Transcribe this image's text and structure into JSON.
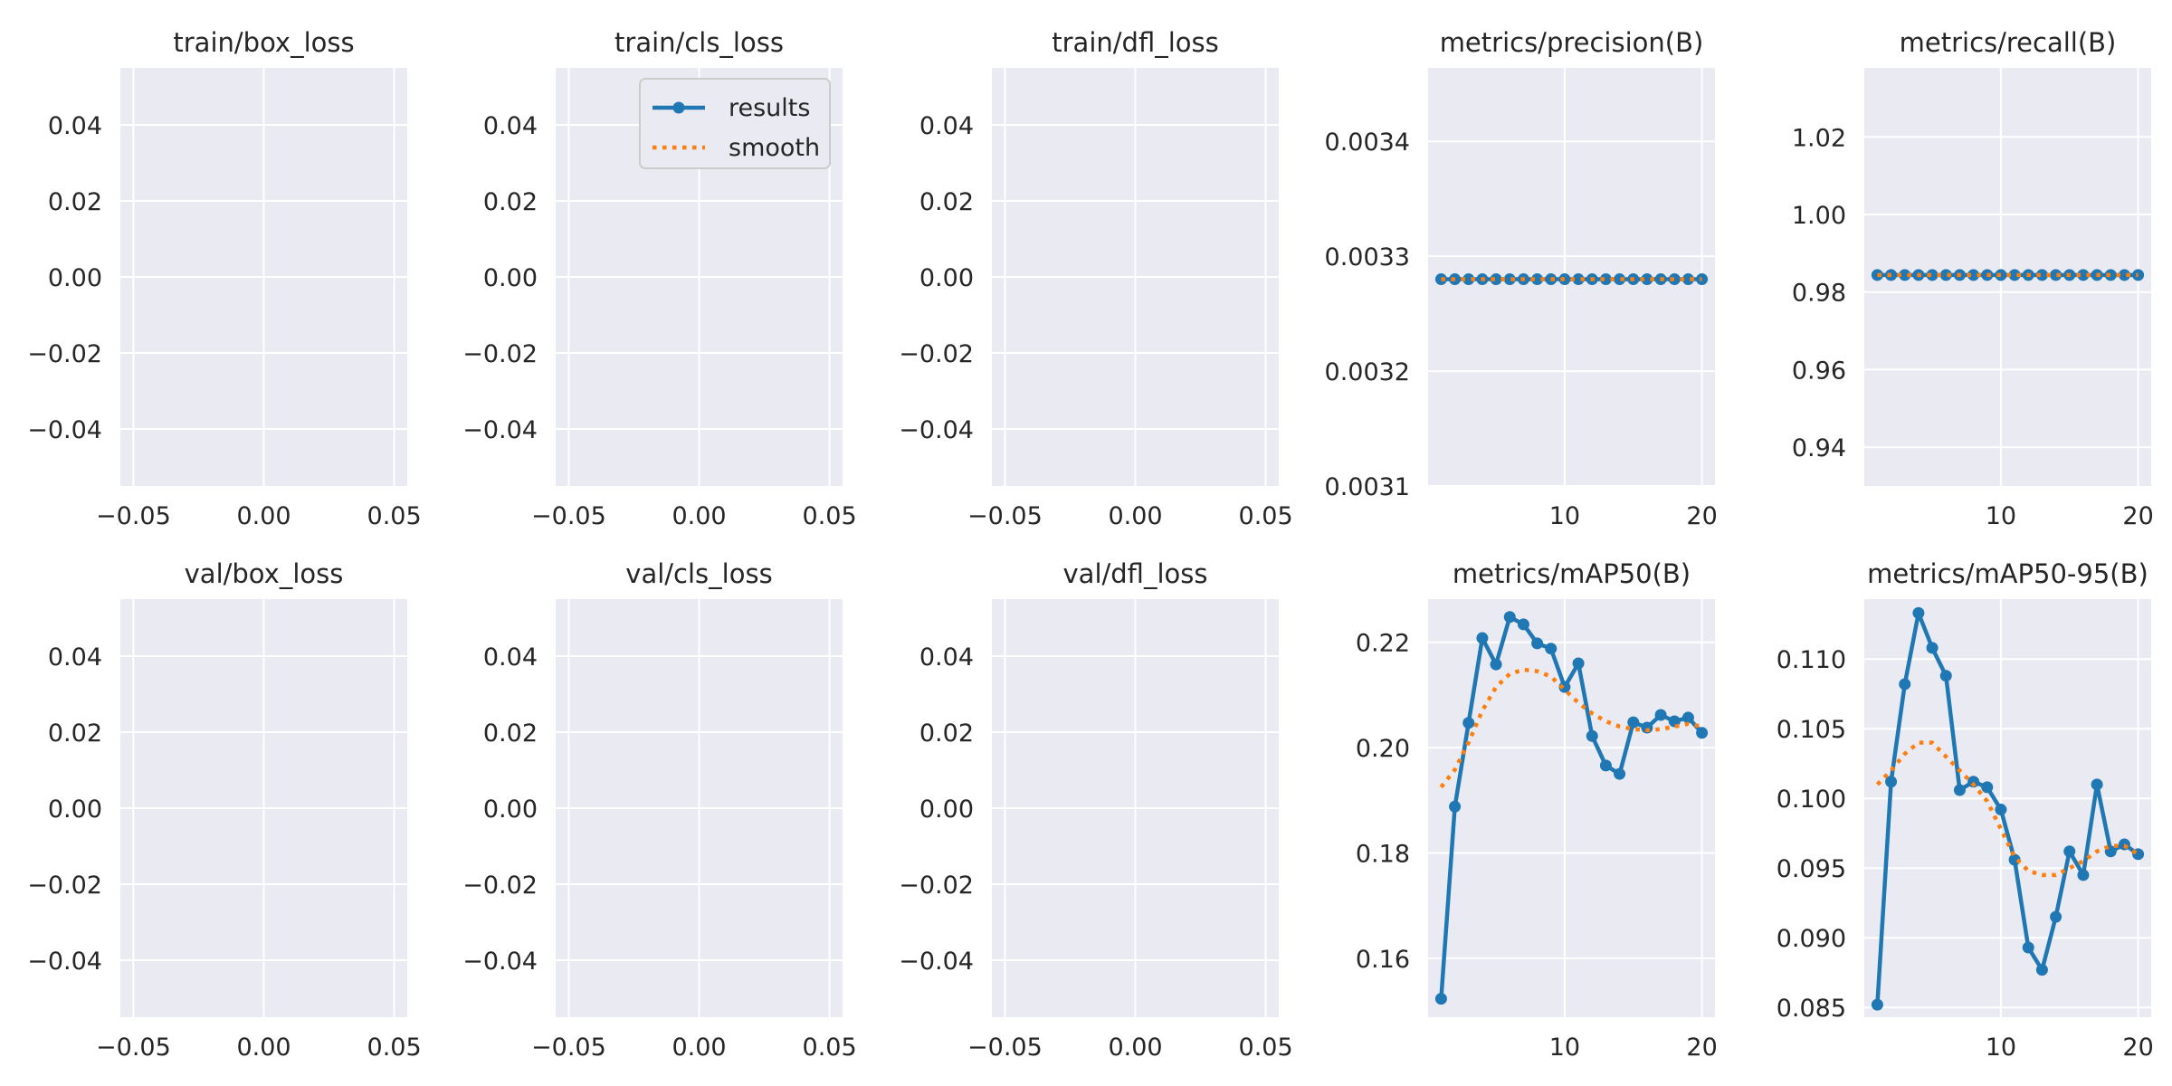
{
  "colors": {
    "panel_bg": "#eaeaf2",
    "grid": "#ffffff",
    "results": "#1f77b4",
    "smooth": "#ff7f0e",
    "text": "#262626"
  },
  "legend": {
    "results_label": "results",
    "smooth_label": "smooth",
    "placement": "upper-right of train/cls_loss panel"
  },
  "chart_data": [
    {
      "type": "line",
      "title": "train/box_loss",
      "grid": true,
      "xlim": [
        -0.055,
        0.055
      ],
      "ylim": [
        -0.055,
        0.055
      ],
      "xticks": [
        -0.05,
        0,
        0.05
      ],
      "xtick_labels": [
        "−0.05",
        "0.00",
        "0.05"
      ],
      "yticks": [
        -0.04,
        -0.02,
        0,
        0.02,
        0.04
      ],
      "ytick_labels": [
        "−0.04",
        "−0.02",
        "0.00",
        "0.02",
        "0.04"
      ],
      "series": []
    },
    {
      "type": "line",
      "title": "train/cls_loss",
      "grid": true,
      "xlim": [
        -0.055,
        0.055
      ],
      "ylim": [
        -0.055,
        0.055
      ],
      "xticks": [
        -0.05,
        0,
        0.05
      ],
      "xtick_labels": [
        "−0.05",
        "0.00",
        "0.05"
      ],
      "yticks": [
        -0.04,
        -0.02,
        0,
        0.02,
        0.04
      ],
      "ytick_labels": [
        "−0.04",
        "−0.02",
        "0.00",
        "0.02",
        "0.04"
      ],
      "legend": true,
      "series": []
    },
    {
      "type": "line",
      "title": "train/dfl_loss",
      "grid": true,
      "xlim": [
        -0.055,
        0.055
      ],
      "ylim": [
        -0.055,
        0.055
      ],
      "xticks": [
        -0.05,
        0,
        0.05
      ],
      "xtick_labels": [
        "−0.05",
        "0.00",
        "0.05"
      ],
      "yticks": [
        -0.04,
        -0.02,
        0,
        0.02,
        0.04
      ],
      "ytick_labels": [
        "−0.04",
        "−0.02",
        "0.00",
        "0.02",
        "0.04"
      ],
      "series": []
    },
    {
      "type": "line",
      "title": "metrics/precision(B)",
      "grid": true,
      "xlim": [
        0.05,
        20.95
      ],
      "ylim": [
        0.0031,
        0.003464
      ],
      "xticks": [
        10,
        20
      ],
      "xtick_labels": [
        "10",
        "20"
      ],
      "yticks": [
        0.0031,
        0.0032,
        0.0033,
        0.0034
      ],
      "ytick_labels": [
        "0.0031",
        "0.0032",
        "0.0033",
        "0.0034"
      ],
      "series": [
        {
          "name": "results",
          "style": "line-markers",
          "x": [
            1,
            2,
            3,
            4,
            5,
            6,
            7,
            8,
            9,
            10,
            11,
            12,
            13,
            14,
            15,
            16,
            17,
            18,
            19,
            20
          ],
          "y": [
            0.00328,
            0.00328,
            0.00328,
            0.00328,
            0.00328,
            0.00328,
            0.00328,
            0.00328,
            0.00328,
            0.00328,
            0.00328,
            0.00328,
            0.00328,
            0.00328,
            0.00328,
            0.00328,
            0.00328,
            0.00328,
            0.00328,
            0.00328
          ]
        },
        {
          "name": "smooth",
          "style": "dotted",
          "x": [
            1,
            2,
            3,
            4,
            5,
            6,
            7,
            8,
            9,
            10,
            11,
            12,
            13,
            14,
            15,
            16,
            17,
            18,
            19,
            20
          ],
          "y": [
            0.00328,
            0.00328,
            0.00328,
            0.00328,
            0.00328,
            0.00328,
            0.00328,
            0.00328,
            0.00328,
            0.00328,
            0.00328,
            0.00328,
            0.00328,
            0.00328,
            0.00328,
            0.00328,
            0.00328,
            0.00328,
            0.00328,
            0.00328
          ]
        }
      ]
    },
    {
      "type": "line",
      "title": "metrics/recall(B)",
      "grid": true,
      "xlim": [
        0.05,
        20.95
      ],
      "ylim": [
        0.93,
        1.0378
      ],
      "xticks": [
        10,
        20
      ],
      "xtick_labels": [
        "10",
        "20"
      ],
      "yticks": [
        0.94,
        0.96,
        0.98,
        1.0,
        1.02
      ],
      "ytick_labels": [
        "0.94",
        "0.96",
        "0.98",
        "1.00",
        "1.02"
      ],
      "series": [
        {
          "name": "results",
          "style": "line-markers",
          "x": [
            1,
            2,
            3,
            4,
            5,
            6,
            7,
            8,
            9,
            10,
            11,
            12,
            13,
            14,
            15,
            16,
            17,
            18,
            19,
            20
          ],
          "y": [
            0.9844,
            0.9844,
            0.9844,
            0.9844,
            0.9844,
            0.9844,
            0.9844,
            0.9844,
            0.9844,
            0.9844,
            0.9844,
            0.9844,
            0.9844,
            0.9844,
            0.9844,
            0.9844,
            0.9844,
            0.9844,
            0.9844,
            0.9844
          ]
        },
        {
          "name": "smooth",
          "style": "dotted",
          "x": [
            1,
            2,
            3,
            4,
            5,
            6,
            7,
            8,
            9,
            10,
            11,
            12,
            13,
            14,
            15,
            16,
            17,
            18,
            19,
            20
          ],
          "y": [
            0.9844,
            0.9844,
            0.9844,
            0.9844,
            0.9844,
            0.9844,
            0.9844,
            0.9844,
            0.9844,
            0.9844,
            0.9844,
            0.9844,
            0.9844,
            0.9844,
            0.9844,
            0.9844,
            0.9844,
            0.9844,
            0.9844,
            0.9844
          ]
        }
      ]
    },
    {
      "type": "line",
      "title": "val/box_loss",
      "grid": true,
      "xlim": [
        -0.055,
        0.055
      ],
      "ylim": [
        -0.055,
        0.055
      ],
      "xticks": [
        -0.05,
        0,
        0.05
      ],
      "xtick_labels": [
        "−0.05",
        "0.00",
        "0.05"
      ],
      "yticks": [
        -0.04,
        -0.02,
        0,
        0.02,
        0.04
      ],
      "ytick_labels": [
        "−0.04",
        "−0.02",
        "0.00",
        "0.02",
        "0.04"
      ],
      "series": []
    },
    {
      "type": "line",
      "title": "val/cls_loss",
      "grid": true,
      "xlim": [
        -0.055,
        0.055
      ],
      "ylim": [
        -0.055,
        0.055
      ],
      "xticks": [
        -0.05,
        0,
        0.05
      ],
      "xtick_labels": [
        "−0.05",
        "0.00",
        "0.05"
      ],
      "yticks": [
        -0.04,
        -0.02,
        0,
        0.02,
        0.04
      ],
      "ytick_labels": [
        "−0.04",
        "−0.02",
        "0.00",
        "0.02",
        "0.04"
      ],
      "series": []
    },
    {
      "type": "line",
      "title": "val/dfl_loss",
      "grid": true,
      "xlim": [
        -0.055,
        0.055
      ],
      "ylim": [
        -0.055,
        0.055
      ],
      "xticks": [
        -0.05,
        0,
        0.05
      ],
      "xtick_labels": [
        "−0.05",
        "0.00",
        "0.05"
      ],
      "yticks": [
        -0.04,
        -0.02,
        0,
        0.02,
        0.04
      ],
      "ytick_labels": [
        "−0.04",
        "−0.02",
        "0.00",
        "0.02",
        "0.04"
      ],
      "series": []
    },
    {
      "type": "line",
      "title": "metrics/mAP50(B)",
      "grid": true,
      "xlim": [
        0.05,
        20.95
      ],
      "ylim": [
        0.1488,
        0.2282
      ],
      "xticks": [
        10,
        20
      ],
      "xtick_labels": [
        "10",
        "20"
      ],
      "yticks": [
        0.16,
        0.18,
        0.2,
        0.22
      ],
      "ytick_labels": [
        "0.16",
        "0.18",
        "0.20",
        "0.22"
      ],
      "series": [
        {
          "name": "results",
          "style": "line-markers",
          "x": [
            1,
            2,
            3,
            4,
            5,
            6,
            7,
            8,
            9,
            10,
            11,
            12,
            13,
            14,
            15,
            16,
            17,
            18,
            19,
            20
          ],
          "y": [
            0.1523,
            0.1888,
            0.2047,
            0.2208,
            0.2158,
            0.2248,
            0.2234,
            0.2198,
            0.2188,
            0.2115,
            0.216,
            0.2022,
            0.1966,
            0.195,
            0.2048,
            0.2038,
            0.2062,
            0.205,
            0.2057,
            0.2028
          ]
        },
        {
          "name": "smooth",
          "style": "dotted",
          "x": [
            1,
            2,
            3,
            4,
            5,
            6,
            7,
            8,
            9,
            10,
            11,
            12,
            13,
            14,
            15,
            16,
            17,
            18,
            19,
            20
          ],
          "y": [
            0.1925,
            0.1958,
            0.201,
            0.207,
            0.2115,
            0.214,
            0.2148,
            0.2145,
            0.2135,
            0.211,
            0.2085,
            0.2065,
            0.205,
            0.204,
            0.2035,
            0.2033,
            0.2035,
            0.204,
            0.2045,
            0.204
          ]
        }
      ]
    },
    {
      "type": "line",
      "title": "metrics/mAP50-95(B)",
      "grid": true,
      "xlim": [
        0.05,
        20.95
      ],
      "ylim": [
        0.0843,
        0.1143
      ],
      "xticks": [
        10,
        20
      ],
      "xtick_labels": [
        "10",
        "20"
      ],
      "yticks": [
        0.085,
        0.09,
        0.095,
        0.1,
        0.105,
        0.11
      ],
      "ytick_labels": [
        "0.085",
        "0.090",
        "0.095",
        "0.100",
        "0.105",
        "0.110"
      ],
      "series": [
        {
          "name": "results",
          "style": "line-markers",
          "x": [
            1,
            2,
            3,
            4,
            5,
            6,
            7,
            8,
            9,
            10,
            11,
            12,
            13,
            14,
            15,
            16,
            17,
            18,
            19,
            20
          ],
          "y": [
            0.0852,
            0.1012,
            0.1082,
            0.1133,
            0.1108,
            0.1088,
            0.1006,
            0.1012,
            0.1008,
            0.0992,
            0.0956,
            0.0893,
            0.0877,
            0.0915,
            0.0962,
            0.0945,
            0.101,
            0.0962,
            0.0967,
            0.096
          ]
        },
        {
          "name": "smooth",
          "style": "dotted",
          "x": [
            1,
            2,
            3,
            4,
            5,
            6,
            7,
            8,
            9,
            10,
            11,
            12,
            13,
            14,
            15,
            16,
            17,
            18,
            19,
            20
          ],
          "y": [
            0.101,
            0.102,
            0.1032,
            0.104,
            0.104,
            0.103,
            0.102,
            0.101,
            0.0998,
            0.0978,
            0.0958,
            0.0948,
            0.0945,
            0.0945,
            0.095,
            0.0955,
            0.0962,
            0.0966,
            0.0966,
            0.096
          ]
        }
      ]
    }
  ]
}
